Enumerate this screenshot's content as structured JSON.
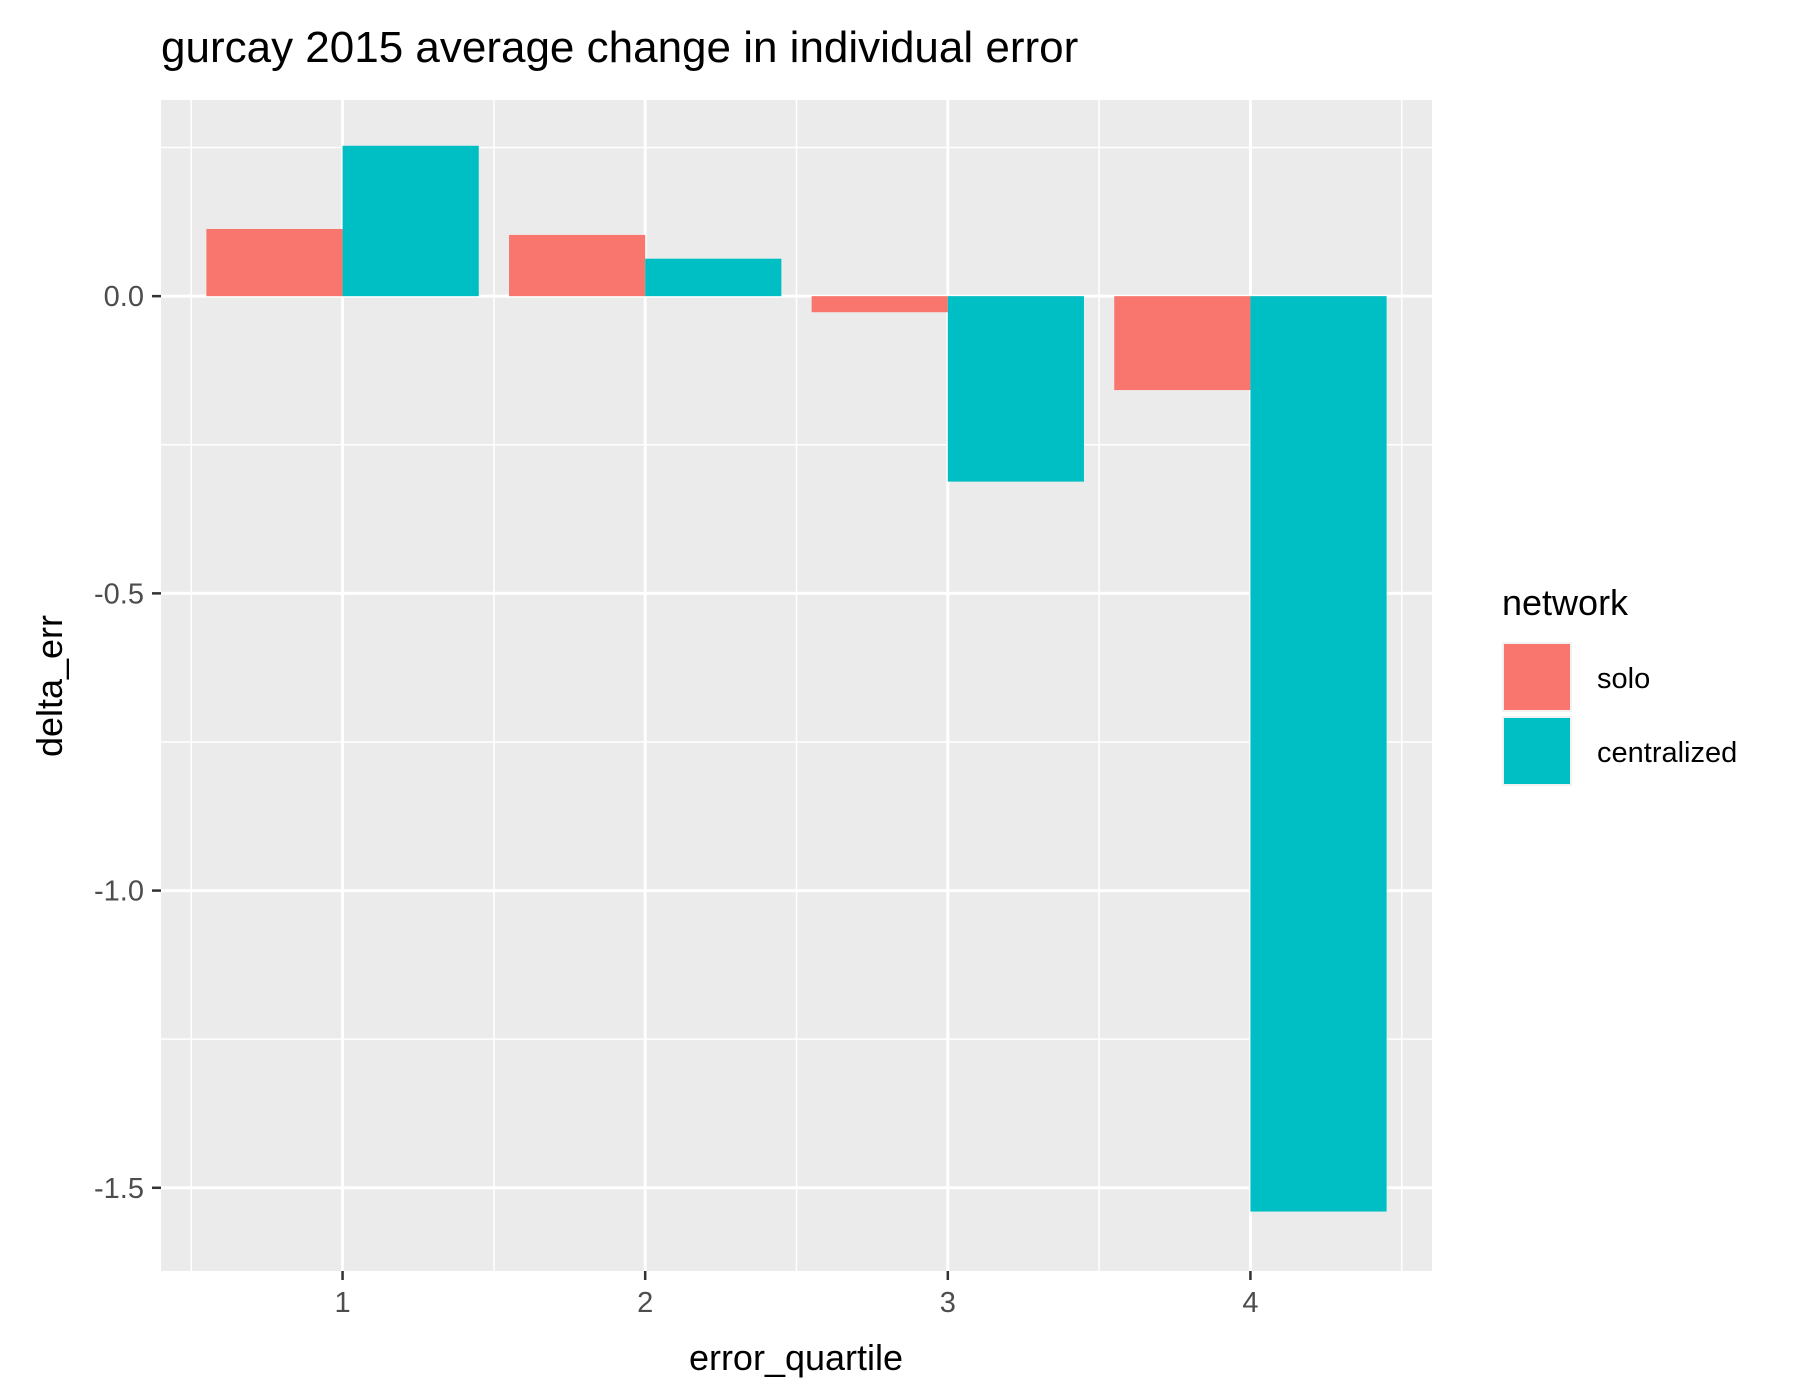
{
  "chart_data": {
    "type": "bar",
    "title": "gurcay 2015 average change in individual error",
    "xlabel": "error_quartile",
    "ylabel": "delta_err",
    "categories": [
      "1",
      "2",
      "3",
      "4"
    ],
    "series": [
      {
        "name": "solo",
        "color": "#F8766D",
        "values": [
          0.113,
          0.103,
          -0.027,
          -0.158
        ]
      },
      {
        "name": "centralized",
        "color": "#00BFC4",
        "values": [
          0.253,
          0.063,
          -0.312,
          -1.54
        ]
      }
    ],
    "ylim": [
      -1.64,
      0.33
    ],
    "yticks": [
      0.0,
      -0.5,
      -1.0,
      -1.5
    ],
    "ytick_labels": [
      "0.0",
      "-0.5",
      "-1.0",
      "-1.5"
    ],
    "grid": true,
    "legend": {
      "title": "network",
      "placement": "right"
    },
    "panel_background": "#EBEBEB",
    "grid_color": "#FFFFFF"
  }
}
